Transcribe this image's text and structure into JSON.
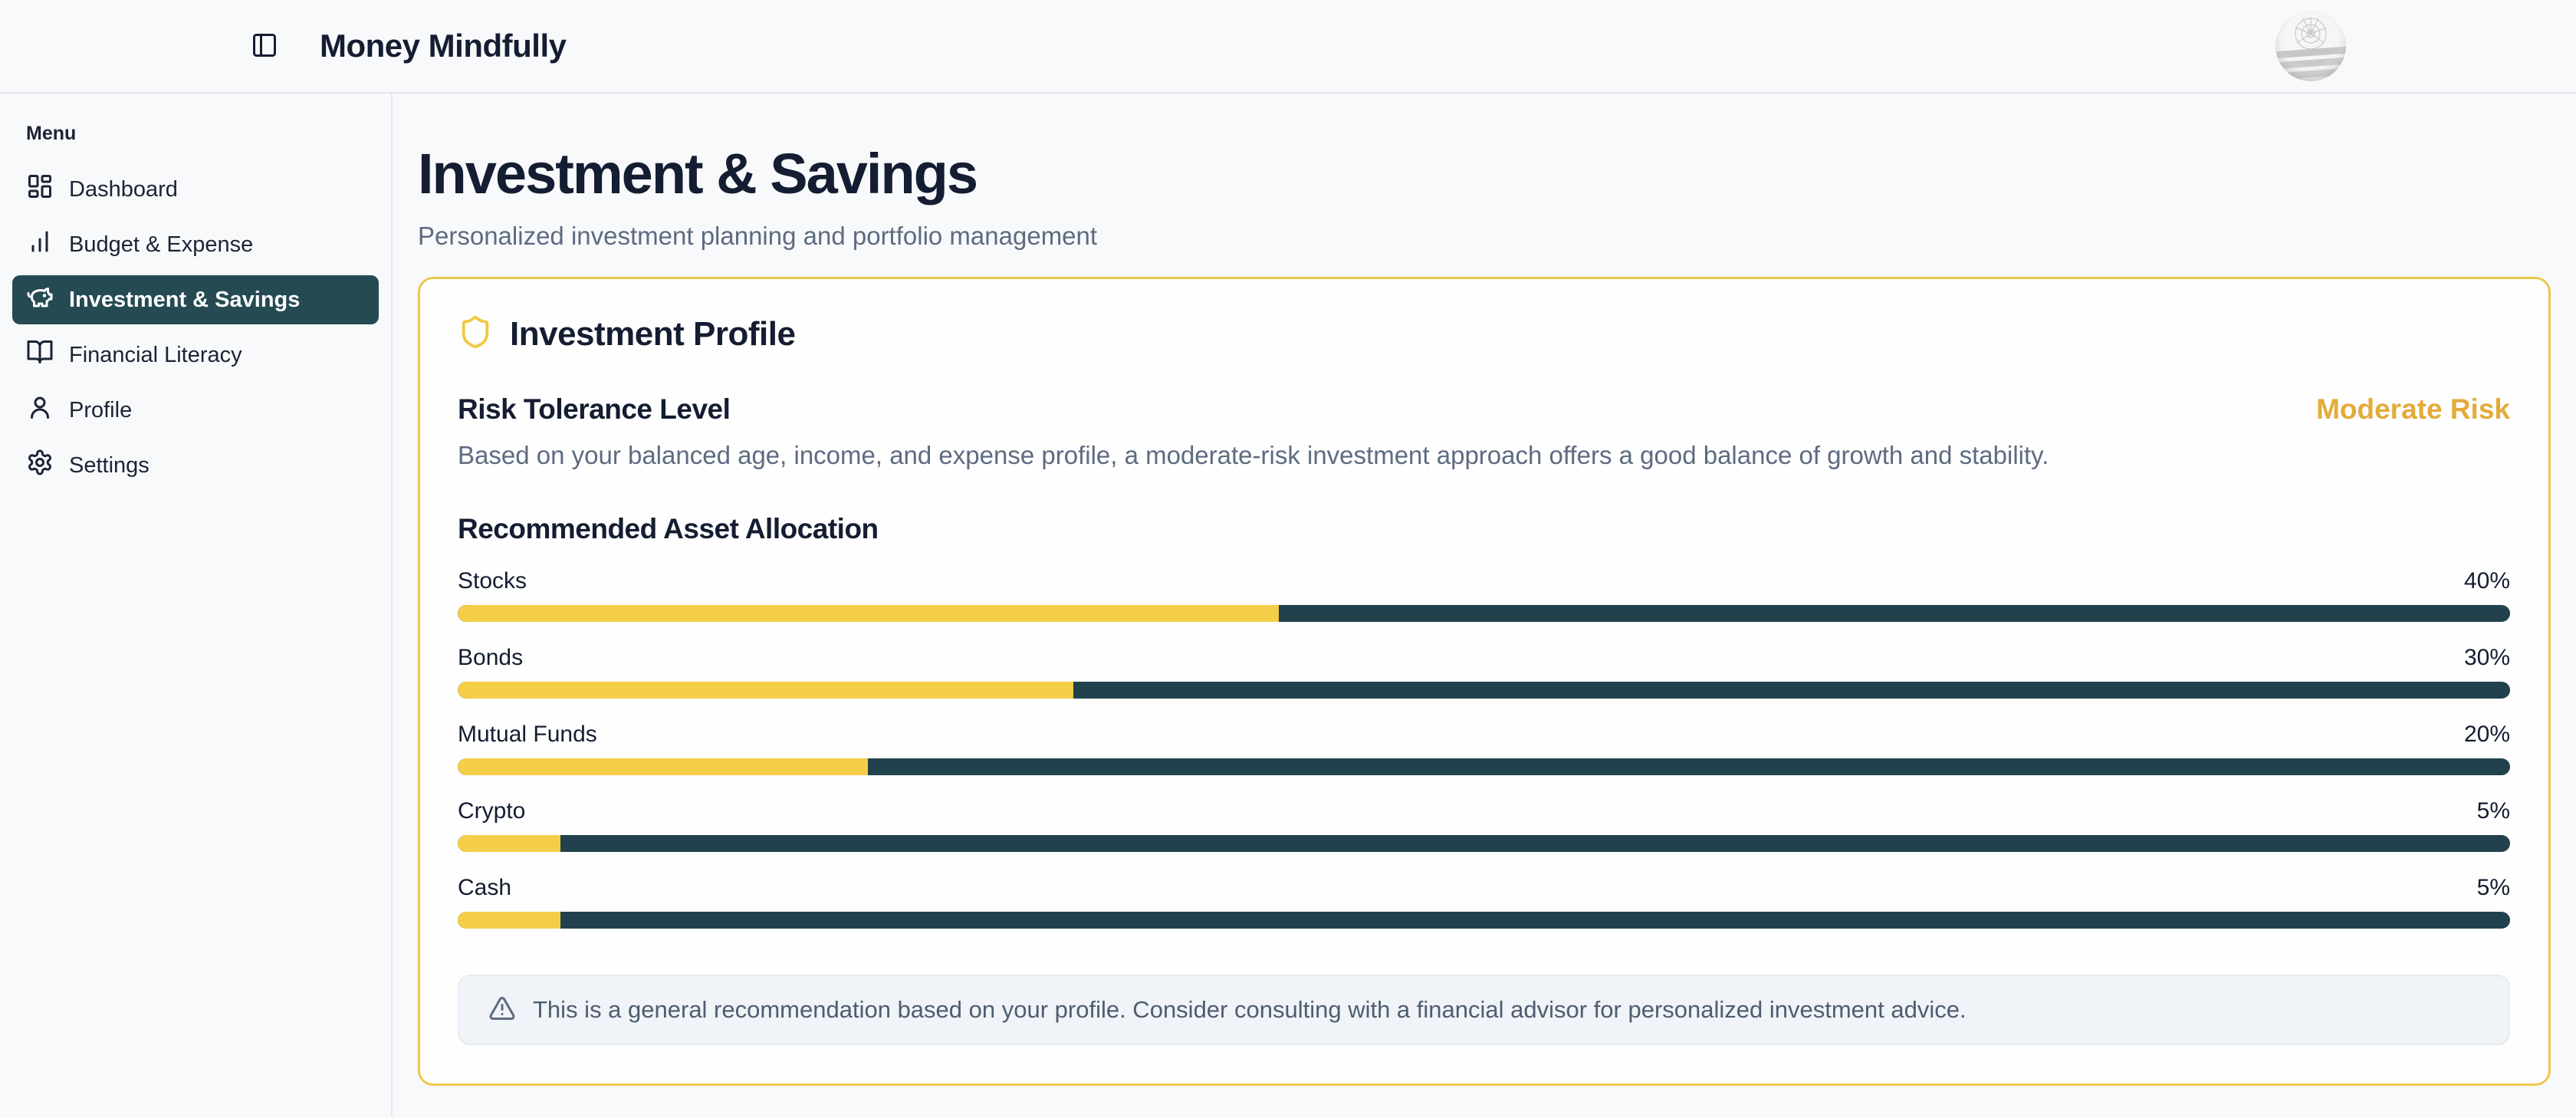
{
  "header": {
    "title": "Money Mindfully"
  },
  "sidebar": {
    "section_label": "Menu",
    "items": [
      {
        "label": "Dashboard",
        "icon": "layout-dashboard-icon",
        "active": false
      },
      {
        "label": "Budget & Expense",
        "icon": "bar-chart-icon",
        "active": false
      },
      {
        "label": "Investment & Savings",
        "icon": "piggy-bank-icon",
        "active": true
      },
      {
        "label": "Financial Literacy",
        "icon": "book-open-icon",
        "active": false
      },
      {
        "label": "Profile",
        "icon": "user-icon",
        "active": false
      },
      {
        "label": "Settings",
        "icon": "gear-icon",
        "active": false
      }
    ]
  },
  "page": {
    "title": "Investment & Savings",
    "subtitle": "Personalized investment planning and portfolio management"
  },
  "card": {
    "title": "Investment Profile",
    "risk": {
      "heading": "Risk Tolerance Level",
      "level": "Moderate Risk",
      "description": "Based on your balanced age, income, and expense profile, a moderate-risk investment approach offers a good balance of growth and stability."
    },
    "allocation_heading": "Recommended Asset Allocation",
    "note": "This is a general recommendation based on your profile. Consider consulting with a financial advisor for personalized investment advice."
  },
  "allocation": {
    "items": [
      {
        "label": "Stocks",
        "value": 40,
        "percent_label": "40%"
      },
      {
        "label": "Bonds",
        "value": 30,
        "percent_label": "30%"
      },
      {
        "label": "Mutual Funds",
        "value": 20,
        "percent_label": "20%"
      },
      {
        "label": "Crypto",
        "value": 5,
        "percent_label": "5%"
      },
      {
        "label": "Cash",
        "value": 5,
        "percent_label": "5%"
      }
    ]
  },
  "chart_data": {
    "type": "bar",
    "title": "Recommended Asset Allocation",
    "categories": [
      "Stocks",
      "Bonds",
      "Mutual Funds",
      "Crypto",
      "Cash"
    ],
    "values": [
      40,
      30,
      20,
      5,
      5
    ],
    "unit": "%",
    "xlim": [
      0,
      100
    ]
  },
  "colors": {
    "accent_gold": "#f5ce48",
    "gold_text": "#e3ab3a",
    "card_border": "#edc84d",
    "bar_track": "#21424c",
    "sidebar_active_bg": "#254a52",
    "dark_text": "#141d31",
    "muted_text": "#5d6b80",
    "page_bg": "#f8f9fb"
  }
}
